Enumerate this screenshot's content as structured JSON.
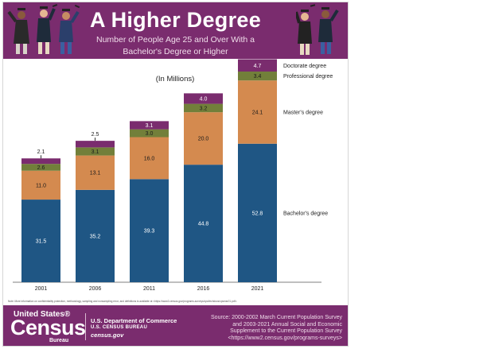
{
  "header": {
    "title": "A Higher Degree",
    "subtitle_line1": "Number of People Age 25 and Over With a",
    "subtitle_line2": "Bachelor's Degree or Higher"
  },
  "chart_data": {
    "type": "bar",
    "stacked": true,
    "units_label": "(In Millions)",
    "categories": [
      "2001",
      "2006",
      "2011",
      "2016",
      "2021"
    ],
    "series": [
      {
        "name": "Bachelor's degree",
        "values": [
          31.5,
          35.2,
          39.3,
          44.8,
          52.8
        ],
        "color": "#1f5684"
      },
      {
        "name": "Master's degree",
        "values": [
          11.0,
          13.1,
          16.0,
          20.0,
          24.1
        ],
        "color": "#d48a4f"
      },
      {
        "name": "Professional degree",
        "values": [
          2.6,
          3.1,
          3.0,
          3.2,
          3.4
        ],
        "color": "#727f3a"
      },
      {
        "name": "Doctorate degree",
        "values": [
          2.1,
          2.5,
          3.1,
          4.0,
          4.7
        ],
        "color": "#7a2c6e"
      }
    ],
    "value_labels": [
      [
        "31.5",
        "35.2",
        "39.3",
        "44.8",
        "52.8"
      ],
      [
        "11.0",
        "13.1",
        "16.0",
        "20.0",
        "24.1"
      ],
      [
        "2.6",
        "3.1",
        "3.0",
        "3.2",
        "3.4"
      ],
      [
        "2.1",
        "2.5",
        "3.1",
        "4.0",
        "4.7"
      ]
    ],
    "legend_position": "right",
    "grid": false
  },
  "note": "Note: More information on confidentiality protection, methodology, sampling and nonsampling error, and definitions is available at <https://www2.census.gov/programs-surveys/cps/techdocs/cpsmar21.pdf>.",
  "footer": {
    "logo_top": "United States®",
    "logo_main": "Census",
    "logo_sub": "Bureau",
    "dept": "U.S. Department of Commerce",
    "bureau": "U.S. CENSUS BUREAU",
    "site": "census.gov",
    "source_lines": [
      "Source: 2000-2002 March Current Population Survey",
      "and 2003-2021 Annual Social and Economic",
      "Supplement to the Current Population Survey",
      "<https://www2.census.gov/programs-surveys>"
    ]
  },
  "colors": {
    "header_bg": "#7a2c6e",
    "bachelors": "#1f5684",
    "masters": "#d48a4f",
    "professional": "#727f3a",
    "doctorate": "#7a2c6e"
  }
}
